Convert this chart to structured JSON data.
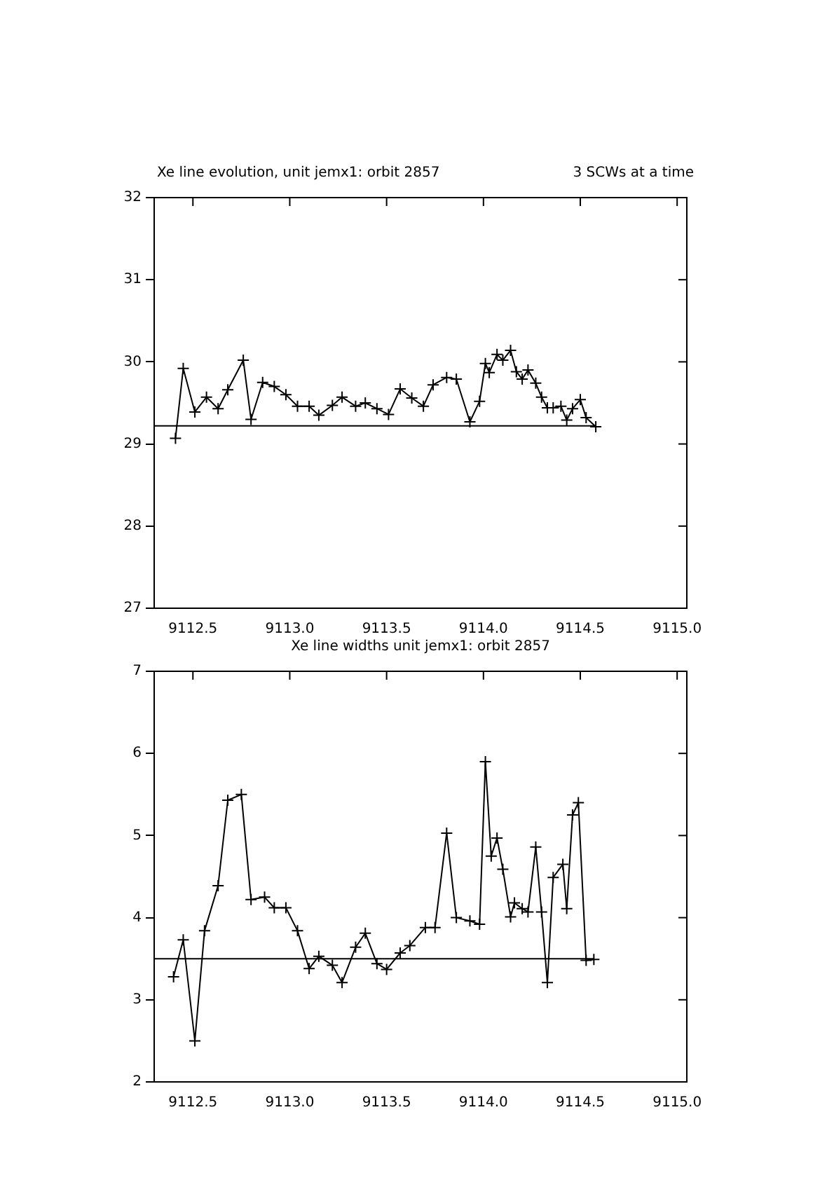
{
  "chart_data": [
    {
      "type": "line",
      "title": "Xe line evolution, unit jemx1: orbit 2857",
      "subtitle": "3 SCWs at a time",
      "marker": "cross",
      "line_style": "solid",
      "grid": false,
      "legend": false,
      "x": [
        9112.41,
        9112.45,
        9112.51,
        9112.57,
        9112.63,
        9112.68,
        9112.76,
        9112.8,
        9112.86,
        9112.92,
        9112.98,
        9113.04,
        9113.1,
        9113.15,
        9113.22,
        9113.27,
        9113.34,
        9113.39,
        9113.45,
        9113.51,
        9113.57,
        9113.63,
        9113.69,
        9113.74,
        9113.81,
        9113.86,
        9113.93,
        9113.98,
        9114.01,
        9114.03,
        9114.07,
        9114.1,
        9114.14,
        9114.17,
        9114.2,
        9114.23,
        9114.27,
        9114.3,
        9114.33,
        9114.36,
        9114.4,
        9114.43,
        9114.46,
        9114.5,
        9114.53,
        9114.58
      ],
      "series": [
        {
          "color": "#000000",
          "values": [
            29.07,
            29.92,
            29.39,
            29.57,
            29.43,
            29.66,
            30.02,
            29.3,
            29.75,
            29.7,
            29.6,
            29.46,
            29.46,
            29.35,
            29.47,
            29.57,
            29.46,
            29.5,
            29.43,
            29.36,
            29.67,
            29.56,
            29.46,
            29.72,
            29.81,
            29.79,
            29.27,
            29.52,
            29.98,
            29.87,
            30.09,
            30.02,
            30.14,
            29.88,
            29.79,
            29.9,
            29.74,
            29.57,
            29.44,
            29.44,
            29.46,
            29.29,
            29.43,
            29.54,
            29.32,
            29.21
          ]
        }
      ],
      "ref_lines": [
        {
          "axis": "y",
          "value": 29.22,
          "color": "#000000"
        }
      ],
      "xlim": [
        9112.3,
        9115.05
      ],
      "xticks": [
        {
          "value": 9112.5,
          "label": "9112.5"
        },
        {
          "value": 9113,
          "label": "9113.0"
        },
        {
          "value": 9113.5,
          "label": "9113.5"
        },
        {
          "value": 9114,
          "label": "9114.0"
        },
        {
          "value": 9114.5,
          "label": "9114.5"
        },
        {
          "value": 9115,
          "label": "9115.0"
        }
      ],
      "ylim": [
        27,
        32
      ],
      "yticks": [
        27,
        28,
        29,
        30,
        31,
        32
      ]
    },
    {
      "type": "line",
      "title": "Xe line widths unit jemx1: orbit 2857",
      "marker": "cross",
      "line_style": "solid",
      "grid": false,
      "legend": false,
      "x": [
        9112.4,
        9112.45,
        9112.51,
        9112.56,
        9112.63,
        9112.68,
        9112.75,
        9112.8,
        9112.87,
        9112.92,
        9112.98,
        9113.04,
        9113.1,
        9113.15,
        9113.22,
        9113.27,
        9113.34,
        9113.39,
        9113.45,
        9113.5,
        9113.57,
        9113.62,
        9113.7,
        9113.75,
        9113.81,
        9113.86,
        9113.93,
        9113.98,
        9114.01,
        9114.04,
        9114.07,
        9114.1,
        9114.14,
        9114.16,
        9114.2,
        9114.23,
        9114.27,
        9114.3,
        9114.33,
        9114.36,
        9114.41,
        9114.43,
        9114.46,
        9114.49,
        9114.53,
        9114.57
      ],
      "series": [
        {
          "color": "#000000",
          "values": [
            3.28,
            3.73,
            2.5,
            3.84,
            4.39,
            5.43,
            5.5,
            4.22,
            4.25,
            4.12,
            4.12,
            3.84,
            3.38,
            3.53,
            3.42,
            3.21,
            3.64,
            3.81,
            3.44,
            3.37,
            3.57,
            3.66,
            3.88,
            3.88,
            5.03,
            4.0,
            3.96,
            3.92,
            5.9,
            4.75,
            4.97,
            4.59,
            4.01,
            4.18,
            4.11,
            4.07,
            4.86,
            4.07,
            3.21,
            4.49,
            4.65,
            4.11,
            5.25,
            5.4,
            3.48,
            3.49
          ]
        }
      ],
      "ref_lines": [
        {
          "axis": "y",
          "value": 3.5,
          "color": "#000000"
        }
      ],
      "xlim": [
        9112.3,
        9115.05
      ],
      "xticks": [
        {
          "value": 9112.5,
          "label": "9112.5"
        },
        {
          "value": 9113,
          "label": "9113.0"
        },
        {
          "value": 9113.5,
          "label": "9113.5"
        },
        {
          "value": 9114,
          "label": "9114.0"
        },
        {
          "value": 9114.5,
          "label": "9114.5"
        },
        {
          "value": 9115,
          "label": "9115.0"
        }
      ],
      "ylim": [
        2,
        7
      ],
      "yticks": [
        2,
        3,
        4,
        5,
        6,
        7
      ]
    }
  ]
}
